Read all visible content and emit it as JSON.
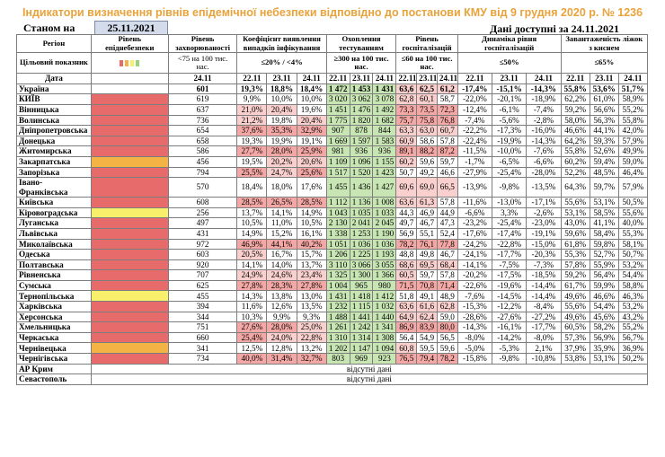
{
  "title": "Індикатори визначення рівнів епідемічної небезпеки відповідно до постанови КМУ від 9 грудня 2020 р. № 1236",
  "as_of_label": "Станом на",
  "as_of_date": "25.11.2021",
  "available_label": "Дані доступні за 24.11.2021",
  "headers": {
    "region": "Регіон",
    "level": "Рівень епіднебезпеки",
    "incidence": "Рівень захворюваності",
    "detection": "Коефіцієнт виявлення випадків інфікування",
    "testing": "Охоплення тестуванням",
    "hosp": "Рівень госпіталізацій",
    "dyn": "Динаміка рівня госпіталізацій",
    "beds": "Завантаженість ліжок з киснем",
    "target": "Цільовий показник",
    "date": "Дата",
    "t_incidence": "<75 на 100 тис. нас.",
    "t_detection": "≤20% / <4%",
    "t_testing": "≥300 на 100 тис. нас.",
    "t_hosp": "≤60 на 100 тис. нас.",
    "t_dyn": "≤50%",
    "t_beds": "≤65%",
    "d_incidence": "24.11",
    "d_a": "22.11",
    "d_b": "23.11",
    "d_c": "24.11"
  },
  "legend_colors": [
    "#e86b6b",
    "#f4b345",
    "#f8f06a",
    "#98d37c"
  ],
  "level_colors": {
    "red": "#e86b6b",
    "orange": "#f4b345",
    "yellow": "#f8f06a",
    "green": "#98d37c"
  },
  "ukraine": {
    "name": "Україна",
    "inc": "601",
    "det": [
      "19,3%",
      "18,8%",
      "18,4%"
    ],
    "test": [
      "1 472",
      "1 453",
      "1 431"
    ],
    "hosp": [
      "63,6",
      "62,5",
      "61,2"
    ],
    "dyn": [
      "-17,4%",
      "-15,1%",
      "-14,3%"
    ],
    "beds": [
      "55,8%",
      "53,6%",
      "51,7%"
    ]
  },
  "regions": [
    {
      "name": "КИЇВ",
      "level": "red",
      "inc": "619",
      "det": [
        "9,9%",
        "10,0%",
        "10,0%"
      ],
      "test": [
        "3 020",
        "3 062",
        "3 078"
      ],
      "hosp": [
        "62,8",
        "60,1",
        "58,7"
      ],
      "dyn": [
        "-22,0%",
        "-20,1%",
        "-18,9%"
      ],
      "beds": [
        "62,2%",
        "61,0%",
        "58,9%"
      ]
    },
    {
      "name": "Вінницька",
      "level": "red",
      "inc": "637",
      "det": [
        "21,0%",
        "20,4%",
        "19,6%"
      ],
      "test": [
        "1 451",
        "1 476",
        "1 492"
      ],
      "hosp": [
        "73,3",
        "73,5",
        "72,3"
      ],
      "dyn": [
        "-12,4%",
        "-6,1%",
        "-7,4%"
      ],
      "beds": [
        "59,2%",
        "56,6%",
        "55,2%"
      ]
    },
    {
      "name": "Волинська",
      "level": "red",
      "inc": "736",
      "det": [
        "21,2%",
        "19,8%",
        "20,4%"
      ],
      "test": [
        "1 775",
        "1 820",
        "1 682"
      ],
      "hosp": [
        "75,7",
        "75,8",
        "76,8"
      ],
      "dyn": [
        "-7,4%",
        "-5,6%",
        "-2,8%"
      ],
      "beds": [
        "58,0%",
        "56,3%",
        "55,8%"
      ]
    },
    {
      "name": "Дніпропетровська",
      "level": "red",
      "inc": "654",
      "det": [
        "37,6%",
        "35,3%",
        "32,9%"
      ],
      "test": [
        "907",
        "878",
        "844"
      ],
      "hosp": [
        "63,3",
        "63,0",
        "60,7"
      ],
      "dyn": [
        "-22,2%",
        "-17,3%",
        "-16,0%"
      ],
      "beds": [
        "46,6%",
        "44,1%",
        "42,0%"
      ]
    },
    {
      "name": "Донецька",
      "level": "red",
      "inc": "658",
      "det": [
        "19,3%",
        "19,9%",
        "19,1%"
      ],
      "test": [
        "1 669",
        "1 597",
        "1 583"
      ],
      "hosp": [
        "60,9",
        "58,6",
        "57,8"
      ],
      "dyn": [
        "-22,4%",
        "-19,9%",
        "-14,3%"
      ],
      "beds": [
        "64,2%",
        "59,3%",
        "57,9%"
      ]
    },
    {
      "name": "Житомирська",
      "level": "red",
      "inc": "586",
      "det": [
        "27,7%",
        "28,0%",
        "25,9%"
      ],
      "test": [
        "981",
        "936",
        "936"
      ],
      "hosp": [
        "89,1",
        "88,2",
        "87,2"
      ],
      "dyn": [
        "-11,5%",
        "-10,0%",
        "-7,6%"
      ],
      "beds": [
        "55,8%",
        "52,6%",
        "49,9%"
      ]
    },
    {
      "name": "Закарпатська",
      "level": "orange",
      "inc": "456",
      "det": [
        "19,5%",
        "20,2%",
        "20,6%"
      ],
      "test": [
        "1 109",
        "1 096",
        "1 155"
      ],
      "hosp": [
        "60,2",
        "59,6",
        "59,7"
      ],
      "dyn": [
        "-1,7%",
        "-6,5%",
        "-6,6%"
      ],
      "beds": [
        "60,2%",
        "59,4%",
        "59,0%"
      ]
    },
    {
      "name": "Запорізька",
      "level": "red",
      "inc": "794",
      "det": [
        "25,5%",
        "24,7%",
        "25,6%"
      ],
      "test": [
        "1 517",
        "1 520",
        "1 423"
      ],
      "hosp": [
        "50,7",
        "49,2",
        "46,6"
      ],
      "dyn": [
        "-27,9%",
        "-25,4%",
        "-28,0%"
      ],
      "beds": [
        "52,2%",
        "48,5%",
        "46,4%"
      ]
    },
    {
      "name": "Івано-Франківська",
      "level": "red",
      "inc": "570",
      "det": [
        "18,4%",
        "18,0%",
        "17,6%"
      ],
      "test": [
        "1 455",
        "1 436",
        "1 427"
      ],
      "hosp": [
        "69,6",
        "69,0",
        "66,5"
      ],
      "dyn": [
        "-13,9%",
        "-9,8%",
        "-13,5%"
      ],
      "beds": [
        "64,3%",
        "59,7%",
        "57,9%"
      ],
      "tall": true
    },
    {
      "name": "Київська",
      "level": "red",
      "inc": "608",
      "det": [
        "28,5%",
        "26,5%",
        "28,5%"
      ],
      "test": [
        "1 112",
        "1 136",
        "1 008"
      ],
      "hosp": [
        "63,6",
        "61,3",
        "57,8"
      ],
      "dyn": [
        "-11,6%",
        "-13,0%",
        "-17,1%"
      ],
      "beds": [
        "55,6%",
        "53,1%",
        "50,5%"
      ]
    },
    {
      "name": "Кіровоградська",
      "level": "yellow",
      "inc": "256",
      "det": [
        "13,7%",
        "14,1%",
        "14,9%"
      ],
      "test": [
        "1 043",
        "1 035",
        "1 033"
      ],
      "hosp": [
        "44,3",
        "46,9",
        "44,9"
      ],
      "dyn": [
        "-6,6%",
        "3,3%",
        "-2,6%"
      ],
      "beds": [
        "53,1%",
        "58,5%",
        "55,6%"
      ]
    },
    {
      "name": "Луганська",
      "level": "red",
      "inc": "497",
      "det": [
        "10,5%",
        "11,0%",
        "10,5%"
      ],
      "test": [
        "2 130",
        "2 041",
        "2 045"
      ],
      "hosp": [
        "49,7",
        "46,7",
        "47,3"
      ],
      "dyn": [
        "-23,2%",
        "-25,4%",
        "-23,0%"
      ],
      "beds": [
        "43,0%",
        "41,1%",
        "40,0%"
      ]
    },
    {
      "name": "Львівська",
      "level": "red",
      "inc": "431",
      "det": [
        "14,9%",
        "15,2%",
        "16,1%"
      ],
      "test": [
        "1 338",
        "1 253",
        "1 190"
      ],
      "hosp": [
        "56,9",
        "55,1",
        "52,4"
      ],
      "dyn": [
        "-17,6%",
        "-17,4%",
        "-19,1%"
      ],
      "beds": [
        "59,6%",
        "58,4%",
        "55,3%"
      ]
    },
    {
      "name": "Миколаївська",
      "level": "red",
      "inc": "972",
      "det": [
        "46,9%",
        "44,1%",
        "40,2%"
      ],
      "test": [
        "1 051",
        "1 036",
        "1 036"
      ],
      "hosp": [
        "78,2",
        "76,1",
        "77,8"
      ],
      "dyn": [
        "-24,2%",
        "-22,8%",
        "-15,0%"
      ],
      "beds": [
        "61,8%",
        "59,8%",
        "58,1%"
      ]
    },
    {
      "name": "Одеська",
      "level": "red",
      "inc": "603",
      "det": [
        "20,5%",
        "16,7%",
        "15,7%"
      ],
      "test": [
        "1 206",
        "1 225",
        "1 193"
      ],
      "hosp": [
        "48,8",
        "49,8",
        "46,7"
      ],
      "dyn": [
        "-24,1%",
        "-17,7%",
        "-20,3%"
      ],
      "beds": [
        "55,3%",
        "52,7%",
        "50,7%"
      ]
    },
    {
      "name": "Полтавська",
      "level": "red",
      "inc": "920",
      "det": [
        "14,1%",
        "14,0%",
        "13,7%"
      ],
      "test": [
        "3 110",
        "3 066",
        "3 055"
      ],
      "hosp": [
        "68,6",
        "69,5",
        "68,4"
      ],
      "dyn": [
        "-14,1%",
        "-7,5%",
        "-7,3%"
      ],
      "beds": [
        "57,8%",
        "55,9%",
        "53,2%"
      ]
    },
    {
      "name": "Рівненська",
      "level": "red",
      "inc": "707",
      "det": [
        "24,9%",
        "24,6%",
        "23,4%"
      ],
      "test": [
        "1 325",
        "1 300",
        "1 366"
      ],
      "hosp": [
        "60,5",
        "59,7",
        "57,8"
      ],
      "dyn": [
        "-20,2%",
        "-17,5%",
        "-18,5%"
      ],
      "beds": [
        "59,2%",
        "56,4%",
        "54,4%"
      ]
    },
    {
      "name": "Сумська",
      "level": "red",
      "inc": "625",
      "det": [
        "27,8%",
        "28,3%",
        "27,8%"
      ],
      "test": [
        "1 004",
        "965",
        "980"
      ],
      "hosp": [
        "71,5",
        "70,8",
        "71,4"
      ],
      "dyn": [
        "-22,6%",
        "-19,6%",
        "-14,4%"
      ],
      "beds": [
        "61,7%",
        "59,9%",
        "58,8%"
      ]
    },
    {
      "name": "Тернопільська",
      "level": "yellow",
      "inc": "455",
      "det": [
        "14,3%",
        "13,8%",
        "13,0%"
      ],
      "test": [
        "1 431",
        "1 418",
        "1 412"
      ],
      "hosp": [
        "51,8",
        "49,1",
        "48,9"
      ],
      "dyn": [
        "-7,6%",
        "-14,5%",
        "-14,4%"
      ],
      "beds": [
        "49,6%",
        "46,6%",
        "46,3%"
      ]
    },
    {
      "name": "Харківська",
      "level": "red",
      "inc": "394",
      "det": [
        "11,6%",
        "12,6%",
        "13,5%"
      ],
      "test": [
        "1 232",
        "1 115",
        "1 032"
      ],
      "hosp": [
        "63,6",
        "61,6",
        "62,8"
      ],
      "dyn": [
        "-15,3%",
        "-12,2%",
        "-8,4%"
      ],
      "beds": [
        "55,6%",
        "54,4%",
        "53,2%"
      ]
    },
    {
      "name": "Херсонська",
      "level": "red",
      "inc": "344",
      "det": [
        "10,3%",
        "9,9%",
        "9,3%"
      ],
      "test": [
        "1 488",
        "1 441",
        "1 440"
      ],
      "hosp": [
        "64,9",
        "62,4",
        "59,0"
      ],
      "dyn": [
        "-28,6%",
        "-27,6%",
        "-27,2%"
      ],
      "beds": [
        "49,6%",
        "45,6%",
        "43,2%"
      ]
    },
    {
      "name": "Хмельницька",
      "level": "red",
      "inc": "751",
      "det": [
        "27,6%",
        "28,0%",
        "25,0%"
      ],
      "test": [
        "1 261",
        "1 242",
        "1 341"
      ],
      "hosp": [
        "86,9",
        "83,9",
        "80,0"
      ],
      "dyn": [
        "-14,3%",
        "-16,1%",
        "-17,7%"
      ],
      "beds": [
        "60,5%",
        "58,2%",
        "55,2%"
      ]
    },
    {
      "name": "Черкаська",
      "level": "red",
      "inc": "660",
      "det": [
        "25,4%",
        "24,0%",
        "22,8%"
      ],
      "test": [
        "1 310",
        "1 314",
        "1 308"
      ],
      "hosp": [
        "56,4",
        "54,9",
        "56,5"
      ],
      "dyn": [
        "-8,0%",
        "-14,2%",
        "-8,0%"
      ],
      "beds": [
        "57,3%",
        "56,9%",
        "56,7%"
      ]
    },
    {
      "name": "Чернівецька",
      "level": "orange",
      "inc": "341",
      "det": [
        "12,5%",
        "12,8%",
        "13,2%"
      ],
      "test": [
        "1 202",
        "1 147",
        "1 094"
      ],
      "hosp": [
        "60,8",
        "59,5",
        "59,6"
      ],
      "dyn": [
        "-5,0%",
        "-5,3%",
        "2,1%"
      ],
      "beds": [
        "37,9%",
        "35,9%",
        "36,9%"
      ]
    },
    {
      "name": "Чернігівська",
      "level": "red",
      "inc": "734",
      "det": [
        "40,0%",
        "31,4%",
        "32,7%"
      ],
      "test": [
        "803",
        "969",
        "923"
      ],
      "hosp": [
        "76,5",
        "79,4",
        "78,2"
      ],
      "dyn": [
        "-15,8%",
        "-9,8%",
        "-10,8%"
      ],
      "beds": [
        "53,8%",
        "53,1%",
        "50,2%"
      ]
    }
  ],
  "no_data_regions": [
    {
      "name": "АР Крим",
      "text": "відсутні дані"
    },
    {
      "name": "Севастополь",
      "text": "відсутні дані"
    }
  ]
}
